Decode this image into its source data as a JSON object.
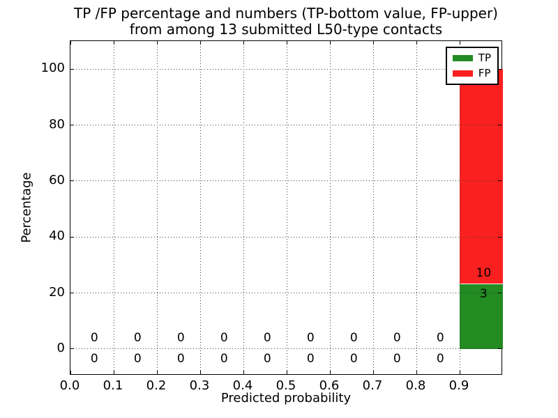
{
  "title": {
    "line1": "TP /FP percentage and numbers (TP-bottom value, FP-upper)",
    "line2": "from among 13 submitted L50-type contacts"
  },
  "chart_data": {
    "type": "bar",
    "stacked": true,
    "title": "TP /FP percentage and numbers (TP-bottom value, FP-upper)\nfrom among 13 submitted L50-type contacts",
    "xlabel": "Predicted probability",
    "ylabel": "Percentage",
    "xlim": [
      0.0,
      1.0
    ],
    "ylim": [
      -9.5,
      110
    ],
    "xticks": [
      0.0,
      0.1,
      0.2,
      0.3,
      0.4,
      0.5,
      0.6,
      0.7,
      0.8,
      0.9
    ],
    "yticks": [
      0,
      20,
      40,
      60,
      80,
      100
    ],
    "grid": {
      "visible": true,
      "style": "dotted"
    },
    "total_submitted": 13,
    "bins": {
      "width": 0.1,
      "centers": [
        0.05,
        0.15,
        0.25,
        0.35,
        0.45,
        0.55,
        0.65,
        0.75,
        0.85,
        0.95
      ]
    },
    "series": [
      {
        "name": "TP",
        "color": "#228b22",
        "counts": [
          0,
          0,
          0,
          0,
          0,
          0,
          0,
          0,
          0,
          3
        ],
        "percent": [
          0,
          0,
          0,
          0,
          0,
          0,
          0,
          0,
          0,
          23.08
        ]
      },
      {
        "name": "FP",
        "color": "#fb2020",
        "counts": [
          0,
          0,
          0,
          0,
          0,
          0,
          0,
          0,
          0,
          10
        ],
        "percent": [
          0,
          0,
          0,
          0,
          0,
          0,
          0,
          0,
          0,
          76.92
        ]
      }
    ],
    "legend": {
      "position": "upper-right",
      "entries": [
        "TP",
        "FP"
      ]
    }
  }
}
